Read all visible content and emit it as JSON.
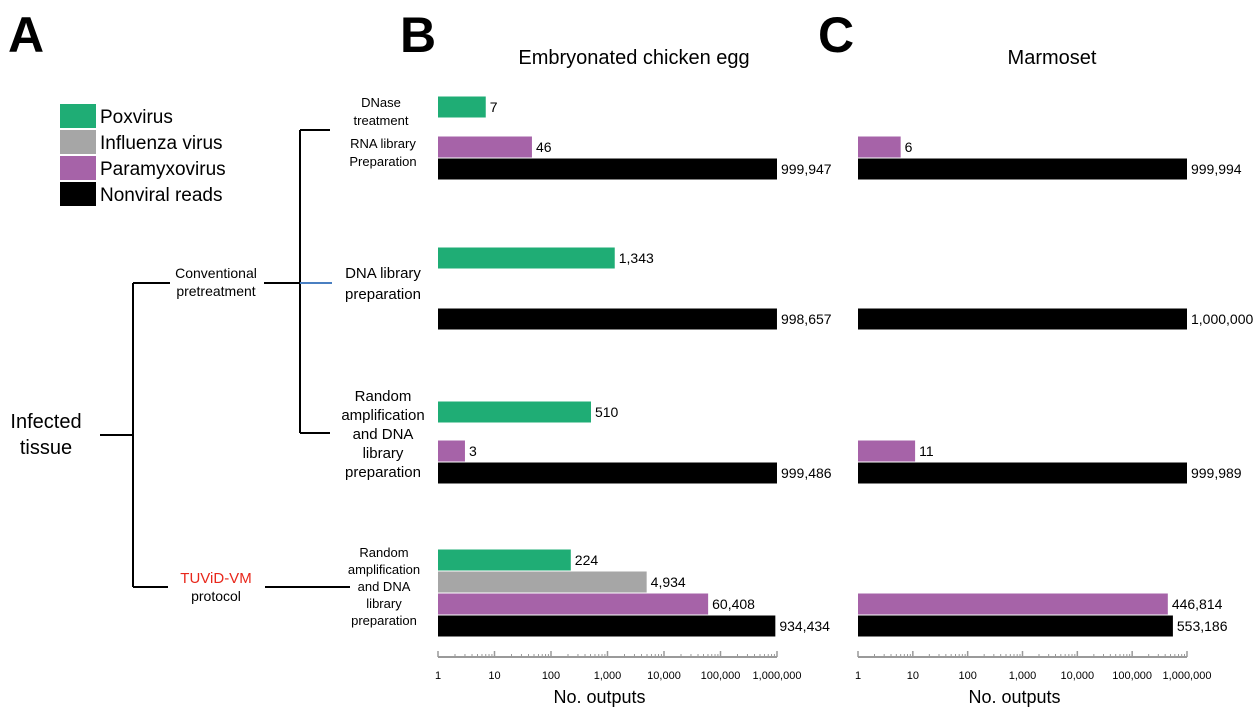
{
  "panel_labels": {
    "a": "A",
    "b": "B",
    "c": "C"
  },
  "legend": [
    {
      "label": "Poxvirus",
      "color": "#1fad75"
    },
    {
      "label": "Influenza virus",
      "color": "#a6a6a6"
    },
    {
      "label": "Paramyxovirus",
      "color": "#a663a8"
    },
    {
      "label": "Nonviral reads",
      "color": "#000000"
    }
  ],
  "tree": {
    "root": [
      "Infected",
      "tissue"
    ],
    "conventional": [
      "Conventional",
      "pretreatment"
    ],
    "tuvid_name": "TUViD-VM",
    "tuvid_suffix": "protocol",
    "tuvid_color": "#e8271b",
    "branch_accent_color": "#4a7fc1",
    "groups": [
      {
        "dnase": [
          "DNase",
          "treatment"
        ],
        "rna": [
          "RNA library",
          "Preparation"
        ]
      },
      {
        "lines": [
          "DNA library",
          "preparation"
        ]
      },
      {
        "lines": [
          "Random",
          "amplification",
          "and DNA",
          "library",
          "preparation"
        ]
      },
      {
        "lines": [
          "Random",
          "amplification",
          "and DNA",
          "library",
          "preparation"
        ]
      }
    ]
  },
  "chart_data": [
    {
      "type": "bar",
      "orientation": "horizontal",
      "title": "Embryonated chicken egg",
      "xlabel": "No. outputs",
      "xscale": "log",
      "xlim": [
        1,
        1000000
      ],
      "xticks": [
        "1",
        "10",
        "100",
        "1,000",
        "10,000",
        "100,000",
        "1,000,000"
      ],
      "groups": [
        {
          "bars": [
            {
              "series": "Poxvirus",
              "value": 7,
              "label": "7"
            },
            {
              "series": "Paramyxovirus",
              "value": 46,
              "label": "46"
            },
            {
              "series": "Nonviral reads",
              "value": 999947,
              "label": "999,947"
            }
          ]
        },
        {
          "bars": [
            {
              "series": "Poxvirus",
              "value": 1343,
              "label": "1,343"
            },
            {
              "series": "Nonviral reads",
              "value": 998657,
              "label": "998,657"
            }
          ]
        },
        {
          "bars": [
            {
              "series": "Poxvirus",
              "value": 510,
              "label": "510"
            },
            {
              "series": "Paramyxovirus",
              "value": 3,
              "label": "3"
            },
            {
              "series": "Nonviral reads",
              "value": 999486,
              "label": "999,486"
            }
          ]
        },
        {
          "bars": [
            {
              "series": "Poxvirus",
              "value": 224,
              "label": "224"
            },
            {
              "series": "Influenza virus",
              "value": 4934,
              "label": "4,934"
            },
            {
              "series": "Paramyxovirus",
              "value": 60408,
              "label": "60,408"
            },
            {
              "series": "Nonviral reads",
              "value": 934434,
              "label": "934,434"
            }
          ]
        }
      ]
    },
    {
      "type": "bar",
      "orientation": "horizontal",
      "title": "Marmoset",
      "xlabel": "No. outputs",
      "xscale": "log",
      "xlim": [
        1,
        1000000
      ],
      "xticks": [
        "1",
        "10",
        "100",
        "1,000",
        "10,000",
        "100,000",
        "1,000,000"
      ],
      "groups": [
        {
          "bars": [
            {
              "series": "Paramyxovirus",
              "value": 6,
              "label": "6"
            },
            {
              "series": "Nonviral reads",
              "value": 999994,
              "label": "999,994"
            }
          ]
        },
        {
          "bars": [
            {
              "series": "Nonviral reads",
              "value": 1000000,
              "label": "1,000,000"
            }
          ]
        },
        {
          "bars": [
            {
              "series": "Paramyxovirus",
              "value": 11,
              "label": "11"
            },
            {
              "series": "Nonviral reads",
              "value": 999989,
              "label": "999,989"
            }
          ]
        },
        {
          "bars": [
            {
              "series": "Paramyxovirus",
              "value": 446814,
              "label": "446,814"
            },
            {
              "series": "Nonviral reads",
              "value": 553186,
              "label": "553,186"
            }
          ]
        }
      ]
    }
  ]
}
